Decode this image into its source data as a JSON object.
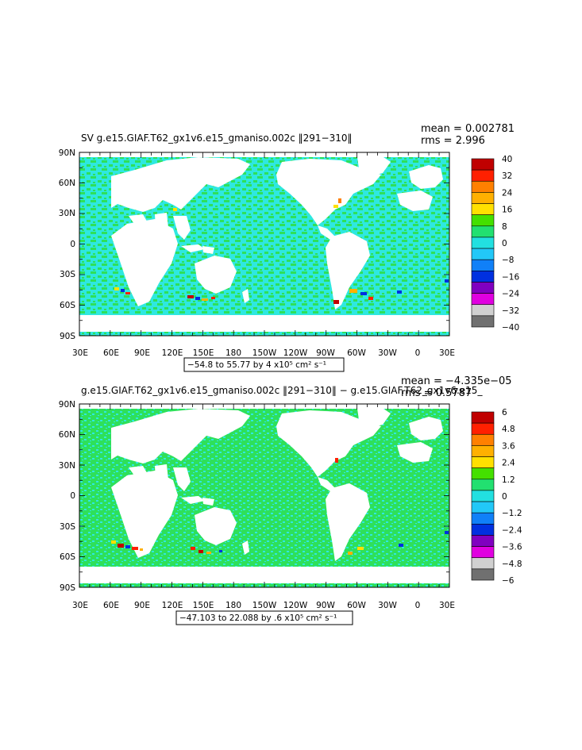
{
  "panels": [
    {
      "title": "SV g.e15.GIAF.T62_gx1v6.e15_gmaniso.002c ‖291−310‖",
      "mean_text": "mean = 0.002781",
      "rms_text": "rms = 2.996",
      "range_text": "−54.8 to 55.77 by 4 x10⁵ cm² s⁻¹",
      "lat_labels": [
        "90N",
        "60N",
        "30N",
        "0",
        "30S",
        "60S",
        "90S"
      ],
      "lon_labels": [
        "30E",
        "60E",
        "90E",
        "120E",
        "150E",
        "180",
        "150W",
        "120W",
        "90W",
        "60W",
        "30W",
        "0",
        "30E"
      ],
      "colorbar_labels": [
        "40",
        "32",
        "24",
        "16",
        "8",
        "0",
        "−8",
        "−16",
        "−24",
        "−32",
        "−40"
      ],
      "colorbar_colors": [
        "#c00000",
        "#ff2000",
        "#ff8000",
        "#ffb000",
        "#ffe000",
        "#44e000",
        "#22e070",
        "#22e0e0",
        "#22c8f8",
        "#1080f8",
        "#0030e0",
        "#8000c0",
        "#e000e0",
        "#d0d0d0",
        "#707070"
      ]
    },
    {
      "title": "g.e15.GIAF.T62_gx1v6.e15_gmaniso.002c ‖291−310‖ − g.e15.GIAF.T62_gx1v6.e15_",
      "mean_text": "mean = −4.335e−05",
      "rms_text": "rms = 0.5787",
      "range_text": "−47.103 to 22.088 by .6 x10⁵ cm² s⁻¹",
      "lat_labels": [
        "90N",
        "60N",
        "30N",
        "0",
        "30S",
        "60S",
        "90S"
      ],
      "lon_labels": [
        "30E",
        "60E",
        "90E",
        "120E",
        "150E",
        "180",
        "150W",
        "120W",
        "90W",
        "60W",
        "30W",
        "0",
        "30E"
      ],
      "colorbar_labels": [
        "6",
        "4.8",
        "3.6",
        "2.4",
        "1.2",
        "0",
        "−1.2",
        "−2.4",
        "−3.6",
        "−4.8",
        "−6"
      ],
      "colorbar_colors": [
        "#c00000",
        "#ff2000",
        "#ff8000",
        "#ffb000",
        "#ffe000",
        "#44e000",
        "#22e070",
        "#22e0e0",
        "#22c8f8",
        "#1080f8",
        "#0030e0",
        "#8000c0",
        "#e000e0",
        "#d0d0d0",
        "#707070"
      ]
    }
  ],
  "colors": {
    "ocean_a": "#2ee8e0",
    "ocean_b": "#2ee05a",
    "land": "#ffffff"
  }
}
